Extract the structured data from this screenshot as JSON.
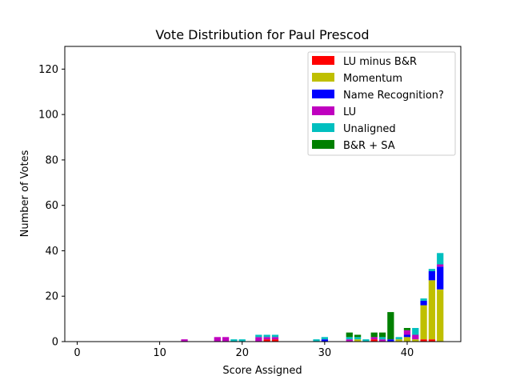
{
  "chart_data": {
    "type": "bar",
    "stacked": true,
    "title": "Vote Distribution for Paul Prescod",
    "xlabel": "Score Assigned",
    "ylabel": "Number of Votes",
    "xlim": [
      -1.5,
      46.5
    ],
    "ylim": [
      0,
      130
    ],
    "xticks": [
      0,
      10,
      20,
      30,
      40
    ],
    "yticks": [
      0,
      20,
      40,
      60,
      80,
      100,
      120
    ],
    "grid": false,
    "legend_position": "top-right",
    "x": [
      13,
      17,
      18,
      19,
      20,
      22,
      23,
      24,
      29,
      30,
      33,
      34,
      35,
      36,
      37,
      38,
      39,
      40,
      41,
      42,
      43,
      44
    ],
    "series": [
      {
        "name": "LU minus B&R",
        "color": "#ff0000",
        "values": [
          0,
          0,
          0,
          0,
          0,
          0,
          1,
          1,
          0,
          0,
          0,
          0,
          0,
          1,
          0,
          0,
          0,
          0,
          0,
          1,
          1,
          0
        ]
      },
      {
        "name": "Momentum",
        "color": "#bfbf00",
        "values": [
          0,
          0,
          0,
          0,
          0,
          0,
          0,
          0,
          0,
          0,
          0,
          1,
          0,
          0,
          0,
          0,
          1,
          2,
          1,
          15,
          26,
          23
        ]
      },
      {
        "name": "Name Recognition?",
        "color": "#0000ff",
        "values": [
          0,
          0,
          0,
          0,
          0,
          0,
          0,
          0,
          0,
          1,
          0,
          0,
          0,
          0,
          0,
          1,
          0,
          1,
          0,
          2,
          4,
          10
        ]
      },
      {
        "name": "LU",
        "color": "#bf00bf",
        "values": [
          1,
          2,
          2,
          0,
          0,
          2,
          1,
          1,
          0,
          0,
          1,
          0,
          0,
          1,
          1,
          0,
          0,
          2,
          2,
          0,
          0,
          1
        ]
      },
      {
        "name": "Unaligned",
        "color": "#00bfbf",
        "values": [
          0,
          0,
          0,
          1,
          1,
          1,
          1,
          1,
          1,
          1,
          1,
          1,
          1,
          0,
          1,
          0,
          1,
          0,
          3,
          1,
          1,
          5
        ]
      },
      {
        "name": "B&R + SA",
        "color": "#008000",
        "values": [
          0,
          0,
          0,
          0,
          0,
          0,
          0,
          0,
          0,
          0,
          2,
          1,
          0,
          2,
          2,
          12,
          0,
          1,
          0,
          0,
          0,
          0
        ]
      }
    ]
  }
}
